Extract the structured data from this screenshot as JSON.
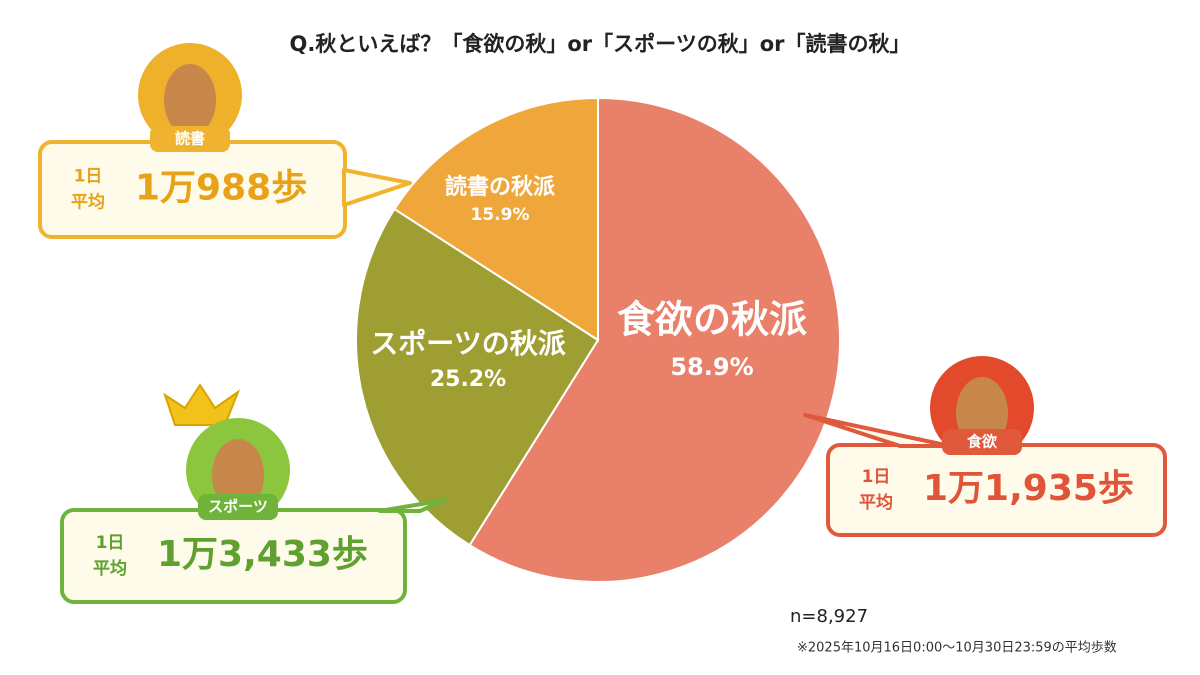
{
  "chart_data": {
    "type": "pie",
    "title": "Q.秋といえば？「食欲の秋」or「スポーツの秋」or「読書の秋」",
    "categories": [
      "食欲の秋派",
      "スポーツの秋派",
      "読書の秋派"
    ],
    "values": [
      58.9,
      25.2,
      15.9
    ],
    "value_labels": [
      "58.9%",
      "25.2%",
      "15.9%"
    ],
    "colors": [
      "#e8806a",
      "#9e9e32",
      "#efa73c"
    ],
    "callouts": [
      {
        "badge": "食欲",
        "unit_lines": [
          "1日",
          "平均"
        ],
        "value": "1万1,935歩"
      },
      {
        "badge": "スポーツ",
        "unit_lines": [
          "1日",
          "平均"
        ],
        "value": "1万3,433歩"
      },
      {
        "badge": "読書",
        "unit_lines": [
          "1日",
          "平均"
        ],
        "value": "1万988歩"
      }
    ],
    "sample_size": "n=8,927",
    "footnote": "※2025年10月16日0:00〜10月30日23:59の平均歩数"
  }
}
